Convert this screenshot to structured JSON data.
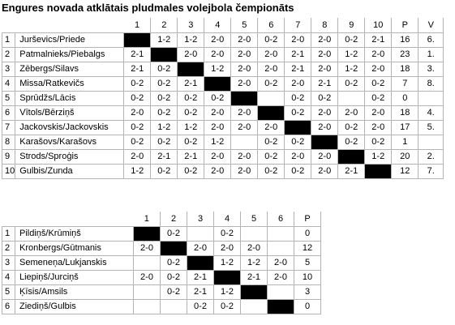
{
  "title": "Engures novada atklātais pludmales volejbola čempionāts",
  "table1": {
    "headers": [
      "1",
      "2",
      "3",
      "4",
      "5",
      "6",
      "7",
      "8",
      "9",
      "10",
      "P",
      "V"
    ],
    "rows": [
      {
        "num": "1",
        "name": "Jurševics/Priede",
        "cells": [
          "",
          "1-2",
          "1-2",
          "2-0",
          "2-0",
          "0-2",
          "2-0",
          "2-0",
          "0-2",
          "2-1",
          "16",
          "6."
        ]
      },
      {
        "num": "2",
        "name": "Patmalnieks/Piebalgs",
        "cells": [
          "2-1",
          "",
          "2-0",
          "2-0",
          "2-0",
          "2-0",
          "2-1",
          "2-0",
          "1-2",
          "2-0",
          "23",
          "1."
        ]
      },
      {
        "num": "3",
        "name": "Zēbergs/Silavs",
        "cells": [
          "2-1",
          "0-2",
          "",
          "1-2",
          "2-0",
          "2-0",
          "2-1",
          "2-0",
          "1-2",
          "2-0",
          "18",
          "3."
        ]
      },
      {
        "num": "4",
        "name": "Missa/Ratkevičs",
        "cells": [
          "0-2",
          "0-2",
          "2-1",
          "",
          "2-0",
          "0-2",
          "2-0",
          "2-1",
          "0-2",
          "0-2",
          "7",
          "8."
        ]
      },
      {
        "num": "5",
        "name": "Sprūdžs/Lācis",
        "cells": [
          "0-2",
          "0-2",
          "0-2",
          "0-2",
          "",
          "",
          "0-2",
          "0-2",
          "",
          "0-2",
          "0",
          ""
        ]
      },
      {
        "num": "6",
        "name": "Vītols/Bērziņš",
        "cells": [
          "2-0",
          "0-2",
          "0-2",
          "2-0",
          "2-0",
          "",
          "0-2",
          "2-0",
          "2-0",
          "2-0",
          "18",
          "4."
        ]
      },
      {
        "num": "7",
        "name": "Jackovskis/Jackovskis",
        "cells": [
          "0-2",
          "1-2",
          "1-2",
          "2-0",
          "2-0",
          "2-0",
          "",
          "2-0",
          "0-2",
          "2-0",
          "17",
          "5."
        ]
      },
      {
        "num": "8",
        "name": "Karašovs/Karašovs",
        "cells": [
          "0-2",
          "0-2",
          "0-2",
          "1-2",
          "",
          "0-2",
          "0-2",
          "",
          "0-2",
          "0-2",
          "1",
          ""
        ]
      },
      {
        "num": "9",
        "name": "Strods/Sproģis",
        "cells": [
          "2-0",
          "2-1",
          "2-1",
          "2-0",
          "2-0",
          "0-2",
          "2-0",
          "2-0",
          "",
          "1-2",
          "20",
          "2."
        ]
      },
      {
        "num": "10",
        "name": "Gulbis/Zunda",
        "cells": [
          "1-2",
          "0-2",
          "0-2",
          "2-0",
          "2-0",
          "0-2",
          "0-2",
          "2-0",
          "2-1",
          "",
          "12",
          "7."
        ]
      }
    ]
  },
  "table2": {
    "headers": [
      "1",
      "2",
      "3",
      "4",
      "5",
      "6",
      "P"
    ],
    "rows": [
      {
        "num": "1",
        "name": "Pildiņš/Krūmiņš",
        "cells": [
          "",
          "0-2",
          "",
          "0-2",
          "",
          "",
          "0"
        ]
      },
      {
        "num": "2",
        "name": "Kronbergs/Gūtmanis",
        "cells": [
          "2-0",
          "",
          "2-0",
          "2-0",
          "2-0",
          "",
          "12"
        ]
      },
      {
        "num": "3",
        "name": "Semeneņa/Lukjanskis",
        "cells": [
          "",
          "0-2",
          "",
          "1-2",
          "1-2",
          "2-0",
          "5"
        ]
      },
      {
        "num": "4",
        "name": "Liepiņš/Jurciņš",
        "cells": [
          "2-0",
          "0-2",
          "2-1",
          "",
          "2-1",
          "2-0",
          "10"
        ]
      },
      {
        "num": "5",
        "name": "Ķīsis/Amsils",
        "cells": [
          "",
          "0-2",
          "2-1",
          "1-2",
          "",
          "",
          "3"
        ]
      },
      {
        "num": "6",
        "name": "Ziediņš/Gulbis",
        "cells": [
          "",
          "",
          "0-2",
          "0-2",
          "",
          "",
          "0"
        ]
      }
    ]
  }
}
